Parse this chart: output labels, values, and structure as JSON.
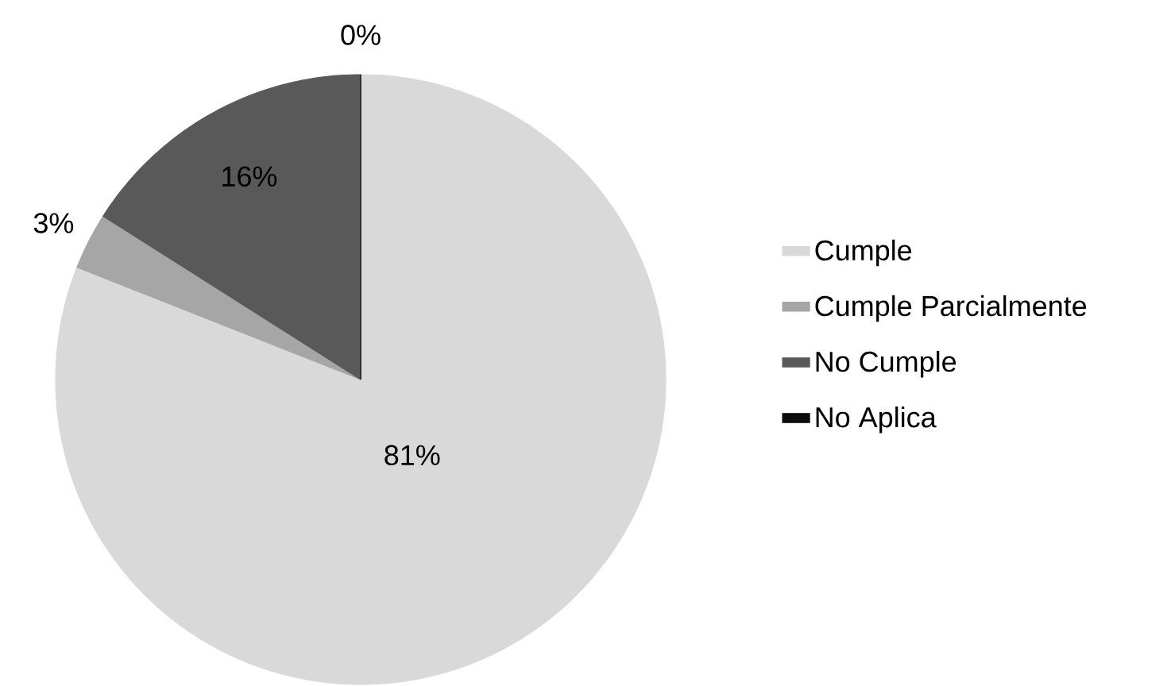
{
  "chart_data": {
    "type": "pie",
    "categories": [
      "Cumple",
      "Cumple Parcialmente",
      "No Cumple",
      "No Aplica"
    ],
    "values": [
      81,
      3,
      16,
      0
    ],
    "colors": [
      "#d9d9d9",
      "#a6a6a6",
      "#595959",
      "#0d0d0d"
    ],
    "value_labels": [
      "81%",
      "3%",
      "16%",
      "0%"
    ],
    "legend": "right"
  }
}
